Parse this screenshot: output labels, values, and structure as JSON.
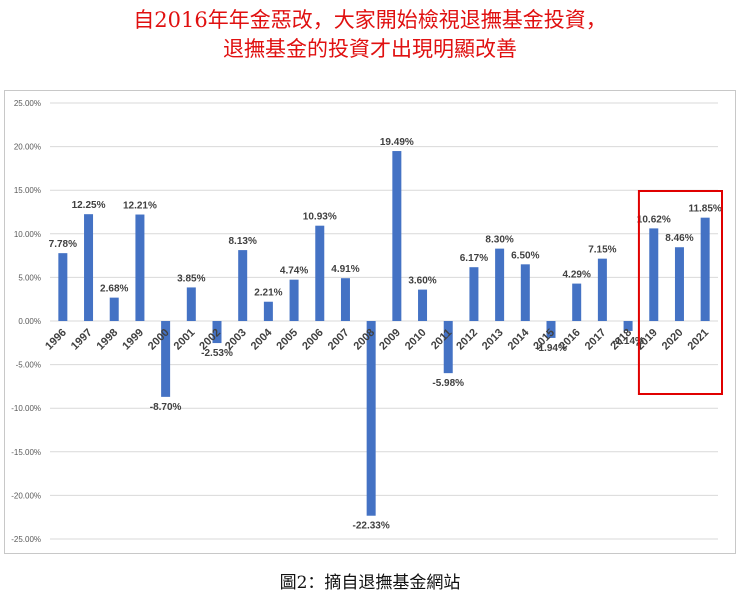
{
  "headline": {
    "line1": "自2016年年金惡改，大家開始檢視退撫基金投資，",
    "line2": "退撫基金的投資才出現明顯改善"
  },
  "caption": "圖2：摘自退撫基金網站",
  "colors": {
    "bar": "#4472c4",
    "highlight_box": "#e00000",
    "headline": "#e01010",
    "gridline": "#d9d9d9"
  },
  "chart_data": {
    "type": "bar",
    "title": "",
    "xlabel": "",
    "ylabel": "",
    "categories": [
      "1996",
      "1997",
      "1998",
      "1999",
      "2000",
      "2001",
      "2002",
      "2003",
      "2004",
      "2005",
      "2006",
      "2007",
      "2008",
      "2009",
      "2010",
      "2011",
      "2012",
      "2013",
      "2014",
      "2015",
      "2016",
      "2017",
      "2018",
      "2019",
      "2020",
      "2021"
    ],
    "values": [
      7.78,
      12.25,
      2.68,
      12.21,
      -8.7,
      3.85,
      -2.53,
      8.13,
      2.21,
      4.74,
      10.93,
      4.91,
      -22.33,
      19.49,
      3.6,
      -5.98,
      6.17,
      8.3,
      6.5,
      -1.94,
      4.29,
      7.15,
      -1.14,
      10.62,
      8.46,
      11.85
    ],
    "data_labels": [
      "7.78%",
      "12.25%",
      "2.68%",
      "12.21%",
      "-8.70%",
      "3.85%",
      "-2.53%",
      "8.13%",
      "2.21%",
      "4.74%",
      "10.93%",
      "4.91%",
      "-22.33%",
      "19.49%",
      "3.60%",
      "-5.98%",
      "6.17%",
      "8.30%",
      "6.50%",
      "-1.94%",
      "4.29%",
      "7.15%",
      "-1.14%",
      "10.62%",
      "8.46%",
      "11.85%"
    ],
    "yticks": [
      25,
      20,
      15,
      10,
      5,
      0,
      -5,
      -10,
      -15,
      -20,
      -25
    ],
    "ytick_labels": [
      "25.00%",
      "20.00%",
      "15.00%",
      "10.00%",
      "5.00%",
      "0.00%",
      "-5.00%",
      "-10.00%",
      "-15.00%",
      "-20.00%",
      "-25.00%"
    ],
    "ylim": [
      -25,
      25
    ],
    "grid": true,
    "legend": "none",
    "highlighted_categories": [
      "2019",
      "2020",
      "2021"
    ]
  }
}
